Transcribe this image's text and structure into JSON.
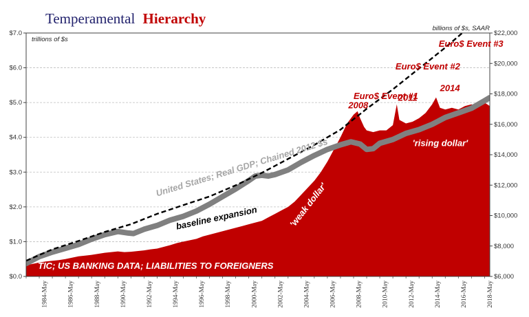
{
  "chart_data": {
    "type": "area",
    "title": {
      "part1": "Temperamental",
      "part2": "Hierarchy"
    },
    "left_axis": {
      "unit_label": "trillions of $s",
      "range": [
        0,
        7
      ],
      "ticks": [
        0,
        1,
        2,
        3,
        4,
        5,
        6,
        7
      ],
      "tick_labels": [
        "$0.0",
        "$1.0",
        "$2.0",
        "$3.0",
        "$4.0",
        "$5.0",
        "$6.0",
        "$7.0"
      ]
    },
    "right_axis": {
      "unit_label": "billions of $s, SAAR",
      "range": [
        6000,
        22000
      ],
      "ticks": [
        6000,
        8000,
        10000,
        12000,
        14000,
        16000,
        18000,
        20000,
        22000
      ],
      "tick_labels": [
        "$6,000",
        "$8,000",
        "$10,000",
        "$12,000",
        "$14,000",
        "$16,000",
        "$18,000",
        "$20,000",
        "$22,000"
      ]
    },
    "x_axis": {
      "range": [
        1983.0,
        2018.4
      ],
      "tick_values": [
        1984.4,
        1986.4,
        1988.4,
        1990.4,
        1992.4,
        1994.4,
        1996.4,
        1998.4,
        2000.4,
        2002.4,
        2004.4,
        2006.4,
        2008.4,
        2010.4,
        2012.4,
        2014.4,
        2016.4,
        2018.4
      ],
      "tick_labels": [
        "1984-May",
        "1986-May",
        "1988-May",
        "1990-May",
        "1992-May",
        "1994-May",
        "1996-May",
        "1998-May",
        "2000-May",
        "2002-May",
        "2004-May",
        "2006-May",
        "2008-May",
        "2010-May",
        "2012-May",
        "2014-May",
        "2016-May",
        "2018-May"
      ]
    },
    "grid": true,
    "series": [
      {
        "name": "TIC; US BANKING DATA; LIABILITIES TO FOREIGNERS",
        "kind": "area",
        "axis": "left",
        "color": "#c00000",
        "points": [
          [
            1983.0,
            0.32
          ],
          [
            1983.5,
            0.36
          ],
          [
            1984.0,
            0.4
          ],
          [
            1984.5,
            0.43
          ],
          [
            1985.0,
            0.45
          ],
          [
            1985.5,
            0.47
          ],
          [
            1986.0,
            0.5
          ],
          [
            1986.5,
            0.54
          ],
          [
            1987.0,
            0.58
          ],
          [
            1987.5,
            0.6
          ],
          [
            1988.0,
            0.62
          ],
          [
            1988.5,
            0.65
          ],
          [
            1989.0,
            0.68
          ],
          [
            1989.5,
            0.7
          ],
          [
            1990.0,
            0.72
          ],
          [
            1990.5,
            0.7
          ],
          [
            1991.0,
            0.71
          ],
          [
            1991.5,
            0.73
          ],
          [
            1992.0,
            0.75
          ],
          [
            1992.5,
            0.78
          ],
          [
            1993.0,
            0.8
          ],
          [
            1993.5,
            0.85
          ],
          [
            1994.0,
            0.9
          ],
          [
            1994.5,
            0.96
          ],
          [
            1995.0,
            1.0
          ],
          [
            1995.5,
            1.04
          ],
          [
            1996.0,
            1.08
          ],
          [
            1996.5,
            1.15
          ],
          [
            1997.0,
            1.2
          ],
          [
            1997.5,
            1.25
          ],
          [
            1998.0,
            1.3
          ],
          [
            1998.5,
            1.35
          ],
          [
            1999.0,
            1.4
          ],
          [
            1999.5,
            1.45
          ],
          [
            2000.0,
            1.5
          ],
          [
            2000.5,
            1.55
          ],
          [
            2001.0,
            1.6
          ],
          [
            2001.5,
            1.7
          ],
          [
            2002.0,
            1.8
          ],
          [
            2002.5,
            1.9
          ],
          [
            2003.0,
            2.0
          ],
          [
            2003.5,
            2.15
          ],
          [
            2004.0,
            2.35
          ],
          [
            2004.5,
            2.55
          ],
          [
            2005.0,
            2.75
          ],
          [
            2005.5,
            3.0
          ],
          [
            2006.0,
            3.3
          ],
          [
            2006.5,
            3.65
          ],
          [
            2007.0,
            4.0
          ],
          [
            2007.5,
            4.4
          ],
          [
            2008.0,
            4.65
          ],
          [
            2008.3,
            4.75
          ],
          [
            2008.5,
            4.55
          ],
          [
            2008.8,
            4.3
          ],
          [
            2009.0,
            4.2
          ],
          [
            2009.5,
            4.15
          ],
          [
            2010.0,
            4.2
          ],
          [
            2010.5,
            4.2
          ],
          [
            2011.0,
            4.35
          ],
          [
            2011.3,
            4.95
          ],
          [
            2011.5,
            4.5
          ],
          [
            2012.0,
            4.4
          ],
          [
            2012.5,
            4.45
          ],
          [
            2013.0,
            4.55
          ],
          [
            2013.5,
            4.7
          ],
          [
            2014.0,
            4.95
          ],
          [
            2014.3,
            5.15
          ],
          [
            2014.6,
            4.85
          ],
          [
            2015.0,
            4.8
          ],
          [
            2015.5,
            4.85
          ],
          [
            2016.0,
            4.8
          ],
          [
            2016.5,
            4.9
          ],
          [
            2017.0,
            4.95
          ],
          [
            2017.5,
            4.9
          ],
          [
            2018.0,
            5.0
          ],
          [
            2018.4,
            4.9
          ]
        ]
      },
      {
        "name": "United States; Real GDP; Chained 2012 $s",
        "kind": "line",
        "axis": "right",
        "color": "#808080",
        "points": [
          [
            1983.0,
            6850
          ],
          [
            1984.0,
            7300
          ],
          [
            1985.0,
            7600
          ],
          [
            1986.0,
            7850
          ],
          [
            1987.0,
            8100
          ],
          [
            1988.0,
            8450
          ],
          [
            1989.0,
            8750
          ],
          [
            1990.0,
            8950
          ],
          [
            1990.8,
            8850
          ],
          [
            1991.2,
            8820
          ],
          [
            1992.0,
            9100
          ],
          [
            1993.0,
            9350
          ],
          [
            1994.0,
            9700
          ],
          [
            1995.0,
            9950
          ],
          [
            1996.0,
            10300
          ],
          [
            1997.0,
            10750
          ],
          [
            1998.0,
            11250
          ],
          [
            1999.0,
            11750
          ],
          [
            2000.0,
            12300
          ],
          [
            2000.5,
            12600
          ],
          [
            2001.0,
            12650
          ],
          [
            2001.5,
            12600
          ],
          [
            2002.0,
            12700
          ],
          [
            2003.0,
            13000
          ],
          [
            2004.0,
            13500
          ],
          [
            2005.0,
            13950
          ],
          [
            2006.0,
            14350
          ],
          [
            2007.0,
            14650
          ],
          [
            2007.8,
            14850
          ],
          [
            2008.5,
            14700
          ],
          [
            2009.0,
            14350
          ],
          [
            2009.5,
            14400
          ],
          [
            2010.0,
            14750
          ],
          [
            2011.0,
            15000
          ],
          [
            2012.0,
            15400
          ],
          [
            2013.0,
            15650
          ],
          [
            2014.0,
            16000
          ],
          [
            2015.0,
            16450
          ],
          [
            2016.0,
            16750
          ],
          [
            2017.0,
            17050
          ],
          [
            2018.0,
            17550
          ],
          [
            2018.4,
            17750
          ]
        ]
      },
      {
        "name": "baseline expansion",
        "kind": "dashed-line",
        "axis": "left",
        "color": "#000000",
        "points": [
          [
            1983.0,
            0.45
          ],
          [
            1985.0,
            0.78
          ],
          [
            1987.0,
            1.02
          ],
          [
            1989.0,
            1.28
          ],
          [
            1991.0,
            1.5
          ],
          [
            1993.0,
            1.8
          ],
          [
            1995.0,
            2.05
          ],
          [
            1997.0,
            2.3
          ],
          [
            1999.0,
            2.62
          ],
          [
            2001.0,
            2.98
          ],
          [
            2003.0,
            3.38
          ],
          [
            2005.0,
            3.78
          ],
          [
            2007.0,
            4.22
          ],
          [
            2009.0,
            4.82
          ],
          [
            2011.0,
            5.38
          ],
          [
            2013.0,
            5.98
          ],
          [
            2015.0,
            6.58
          ],
          [
            2016.3,
            7.0
          ]
        ]
      }
    ],
    "annotations": [
      {
        "text": "Euro$ Event #3",
        "x": 2014.5,
        "y": 6.6,
        "color": "#c00000",
        "rotate": 0
      },
      {
        "text": "Euro$ Event #2",
        "x": 2011.2,
        "y": 5.95,
        "color": "#c00000",
        "rotate": 0
      },
      {
        "text": "Euro$ Event #1",
        "x": 2008.0,
        "y": 5.1,
        "color": "#c00000",
        "rotate": 0
      },
      {
        "text": "2008",
        "x": 2007.6,
        "y": 4.83,
        "color": "#c00000",
        "rotate": 0
      },
      {
        "text": "2011",
        "x": 2011.4,
        "y": 5.05,
        "color": "#c00000",
        "rotate": 0
      },
      {
        "text": "2014",
        "x": 2014.6,
        "y": 5.33,
        "color": "#c00000",
        "rotate": 0
      },
      {
        "text": "'rising dollar'",
        "x": 2012.5,
        "y": 3.75,
        "color": "#ffffff",
        "rotate": 0
      },
      {
        "text": "'weak dollar'",
        "x": 2004.7,
        "y": 2.0,
        "color": "#ffffff",
        "rotate": -52
      },
      {
        "text": "United States; Real GDP; Chained 2012 $s",
        "x": 1993.0,
        "y": 2.3,
        "color": "#a6a6a6",
        "rotate": -17
      },
      {
        "text": "baseline expansion",
        "x": 1994.5,
        "y": 1.35,
        "color": "#000000",
        "rotate": -12
      },
      {
        "text": "TIC; US BANKING DATA; LIABILITIES TO FOREIGNERS",
        "x": 1983.9,
        "y": 0.22,
        "color": "#ffffff",
        "rotate": 0
      }
    ]
  }
}
